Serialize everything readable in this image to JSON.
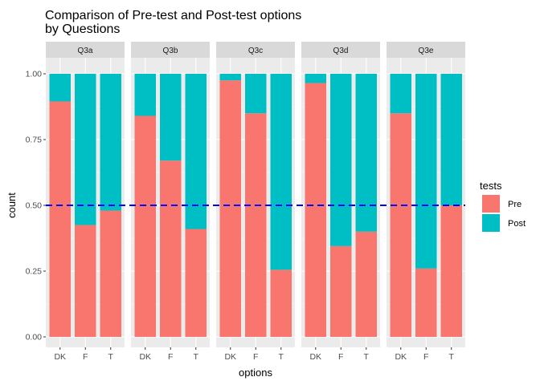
{
  "chart_data": {
    "type": "bar",
    "stacked": "fill",
    "title": "Comparison of Pre-test and Post-test options\n by Questions",
    "xlabel": "options",
    "ylabel": "count",
    "ylim": [
      0,
      1
    ],
    "yticks": [
      "0.00",
      "0.25",
      "0.50",
      "0.75",
      "1.00"
    ],
    "categories": [
      "DK",
      "F",
      "T"
    ],
    "facets": [
      "Q3a",
      "Q3b",
      "Q3c",
      "Q3d",
      "Q3e"
    ],
    "reference_line": {
      "y": 0.5,
      "style": "dashed",
      "color": "#0000FF"
    },
    "series": [
      {
        "name": "Pre",
        "color": "#F8766D",
        "values": {
          "Q3a": [
            0.895,
            0.425,
            0.48
          ],
          "Q3b": [
            0.84,
            0.67,
            0.41
          ],
          "Q3c": [
            0.975,
            0.85,
            0.255
          ],
          "Q3d": [
            0.965,
            0.345,
            0.4
          ],
          "Q3e": [
            0.85,
            0.26,
            0.5
          ]
        }
      },
      {
        "name": "Post",
        "color": "#00BFC4",
        "values": {
          "Q3a": [
            0.105,
            0.575,
            0.52
          ],
          "Q3b": [
            0.16,
            0.33,
            0.59
          ],
          "Q3c": [
            0.025,
            0.15,
            0.745
          ],
          "Q3d": [
            0.035,
            0.655,
            0.6
          ],
          "Q3e": [
            0.15,
            0.74,
            0.5
          ]
        }
      }
    ],
    "legend": {
      "title": "tests",
      "placement": "right"
    },
    "grid": true
  }
}
